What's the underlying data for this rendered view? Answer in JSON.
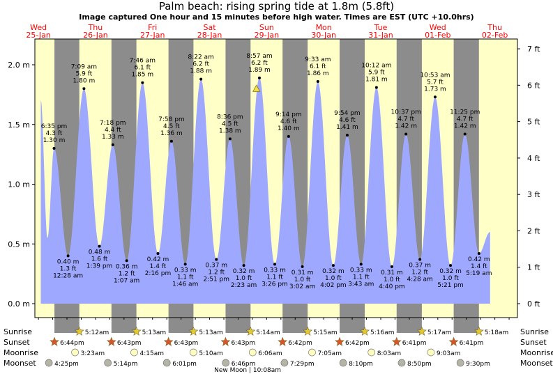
{
  "title": "Palm beach: rising  spring tide at 1.8m (5.8ft)",
  "subtitle": "Image captured One hour and 15 minutes before high water. Times are EST (UTC +10.0hrs)",
  "colors": {
    "day": "#ffffc8",
    "night": "#8c8c8c",
    "water": "#9fa8ff",
    "day_label": "#ff0000",
    "sun": "#e3c836",
    "sunset": "#d9542b",
    "moon": "#ffffc0",
    "moonset": "#b5b5a6"
  },
  "chart_data": {
    "type": "area",
    "title": "Palm beach: rising  spring tide at 1.8m (5.8ft)",
    "xlabel": "",
    "ylabel": "",
    "ylim_m": [
      -0.05,
      2.2
    ],
    "y_ticks_m": [
      "0.0 m",
      "0.5 m",
      "1.0 m",
      "1.5 m",
      "2.0 m"
    ],
    "y_ticks_ft": [
      "0 ft",
      "1 ft",
      "2 ft",
      "3 ft",
      "4 ft",
      "5 ft",
      "6 ft",
      "7 ft"
    ],
    "day_headers": [
      {
        "dow": "Wed",
        "date": "25-Jan"
      },
      {
        "dow": "Thu",
        "date": "26-Jan"
      },
      {
        "dow": "Fri",
        "date": "27-Jan"
      },
      {
        "dow": "Sat",
        "date": "28-Jan"
      },
      {
        "dow": "Sun",
        "date": "29-Jan"
      },
      {
        "dow": "Mon",
        "date": "30-Jan"
      },
      {
        "dow": "Tue",
        "date": "31-Jan"
      },
      {
        "dow": "Wed",
        "date": "01-Feb"
      },
      {
        "dow": "Thu",
        "date": "02-Feb"
      }
    ],
    "extremes": [
      {
        "time": "6:35 pm",
        "ft": "4.3 ft",
        "m": 1.3,
        "label": "1.30 m",
        "type": "high",
        "hour": 18.58
      },
      {
        "time": "12:28 am",
        "ft": "1.3 ft",
        "m": 0.4,
        "label": "0.40 m",
        "type": "low",
        "hour": 24.47
      },
      {
        "time": "7:09 am",
        "ft": "5.9 ft",
        "m": 1.8,
        "label": "1.80 m",
        "type": "high",
        "hour": 31.15
      },
      {
        "time": "1:39 pm",
        "ft": "1.6 ft",
        "m": 0.48,
        "label": "0.48 m",
        "type": "low",
        "hour": 37.65
      },
      {
        "time": "7:18 pm",
        "ft": "4.4 ft",
        "m": 1.33,
        "label": "1.33 m",
        "type": "high",
        "hour": 43.3
      },
      {
        "time": "1:07 am",
        "ft": "1.2 ft",
        "m": 0.36,
        "label": "0.36 m",
        "type": "low",
        "hour": 49.12
      },
      {
        "time": "7:46 am",
        "ft": "6.1 ft",
        "m": 1.85,
        "label": "1.85 m",
        "type": "high",
        "hour": 55.77
      },
      {
        "time": "2:16 pm",
        "ft": "1.4 ft",
        "m": 0.42,
        "label": "0.42 m",
        "type": "low",
        "hour": 62.27
      },
      {
        "time": "7:58 pm",
        "ft": "4.5 ft",
        "m": 1.36,
        "label": "1.36 m",
        "type": "high",
        "hour": 67.97
      },
      {
        "time": "1:46 am",
        "ft": "1.1 ft",
        "m": 0.33,
        "label": "0.33 m",
        "type": "low",
        "hour": 73.77
      },
      {
        "time": "8:22 am",
        "ft": "6.2 ft",
        "m": 1.88,
        "label": "1.88 m",
        "type": "high",
        "hour": 80.37
      },
      {
        "time": "2:51 pm",
        "ft": "1.2 ft",
        "m": 0.37,
        "label": "0.37 m",
        "type": "low",
        "hour": 86.85
      },
      {
        "time": "8:36 pm",
        "ft": "4.5 ft",
        "m": 1.38,
        "label": "1.38 m",
        "type": "high",
        "hour": 92.6
      },
      {
        "time": "2:23 am",
        "ft": "1.0 ft",
        "m": 0.32,
        "label": "0.32 m",
        "type": "low",
        "hour": 98.38
      },
      {
        "time": "8:57 am",
        "ft": "6.2 ft",
        "m": 1.89,
        "label": "1.89 m",
        "type": "high",
        "hour": 104.95
      },
      {
        "time": "3:26 pm",
        "ft": "1.1 ft",
        "m": 0.33,
        "label": "0.33 m",
        "type": "low",
        "hour": 111.43
      },
      {
        "time": "9:14 pm",
        "ft": "4.6 ft",
        "m": 1.4,
        "label": "1.40 m",
        "type": "high",
        "hour": 117.23
      },
      {
        "time": "3:02 am",
        "ft": "1.0 ft",
        "m": 0.31,
        "label": "0.31 m",
        "type": "low",
        "hour": 123.03
      },
      {
        "time": "9:33 am",
        "ft": "6.1 ft",
        "m": 1.86,
        "label": "1.86 m",
        "type": "high",
        "hour": 129.55
      },
      {
        "time": "4:02 pm",
        "ft": "1.0 ft",
        "m": 0.32,
        "label": "0.32 m",
        "type": "low",
        "hour": 136.03
      },
      {
        "time": "9:54 pm",
        "ft": "4.6 ft",
        "m": 1.41,
        "label": "1.41 m",
        "type": "high",
        "hour": 141.9
      },
      {
        "time": "3:43 am",
        "ft": "1.1 ft",
        "m": 0.33,
        "label": "0.33 m",
        "type": "low",
        "hour": 147.72
      },
      {
        "time": "10:12 am",
        "ft": "5.9 ft",
        "m": 1.81,
        "label": "1.81 m",
        "type": "high",
        "hour": 154.2
      },
      {
        "time": "4:40 pm",
        "ft": "1.0 ft",
        "m": 0.31,
        "label": "0.31 m",
        "type": "low",
        "hour": 160.67
      },
      {
        "time": "10:37 pm",
        "ft": "4.7 ft",
        "m": 1.42,
        "label": "1.42 m",
        "type": "high",
        "hour": 166.62
      },
      {
        "time": "4:28 am",
        "ft": "1.2 ft",
        "m": 0.37,
        "label": "0.37 m",
        "type": "low",
        "hour": 172.47
      },
      {
        "time": "10:53 am",
        "ft": "5.7 ft",
        "m": 1.73,
        "label": "1.73 m",
        "type": "high",
        "hour": 178.88
      },
      {
        "time": "5:21 pm",
        "ft": "1.0 ft",
        "m": 0.32,
        "label": "0.32 m",
        "type": "low",
        "hour": 185.35
      },
      {
        "time": "11:25 pm",
        "ft": "4.7 ft",
        "m": 1.42,
        "label": "1.42 m",
        "type": "high",
        "hour": 191.42
      },
      {
        "time": "5:19 am",
        "ft": "1.4 ft",
        "m": 0.42,
        "label": "0.42 m",
        "type": "low",
        "hour": 197.32
      }
    ],
    "current": {
      "hour": 103.7,
      "m": 1.8
    }
  },
  "rows": {
    "sunrise": {
      "label": "Sunrise",
      "times": [
        "5:12am",
        "5:13am",
        "5:13am",
        "5:14am",
        "5:15am",
        "5:16am",
        "5:17am",
        "5:18am"
      ]
    },
    "sunset": {
      "label": "Sunset",
      "times": [
        "6:44pm",
        "6:43pm",
        "6:43pm",
        "6:43pm",
        "6:42pm",
        "6:42pm",
        "6:41pm",
        "6:41pm"
      ]
    },
    "moonrise": {
      "label": "Moonrise",
      "times": [
        "3:23am",
        "4:15am",
        "5:10am",
        "6:06am",
        "7:05am",
        "8:03am",
        "9:03am"
      ]
    },
    "moonset": {
      "label": "Moonset",
      "times": [
        "4:25pm",
        "5:14pm",
        "6:01pm",
        "6:46pm",
        "7:29pm",
        "8:10pm",
        "8:50pm",
        "9:30pm"
      ]
    },
    "new_moon": "New Moon | 10:08am"
  }
}
